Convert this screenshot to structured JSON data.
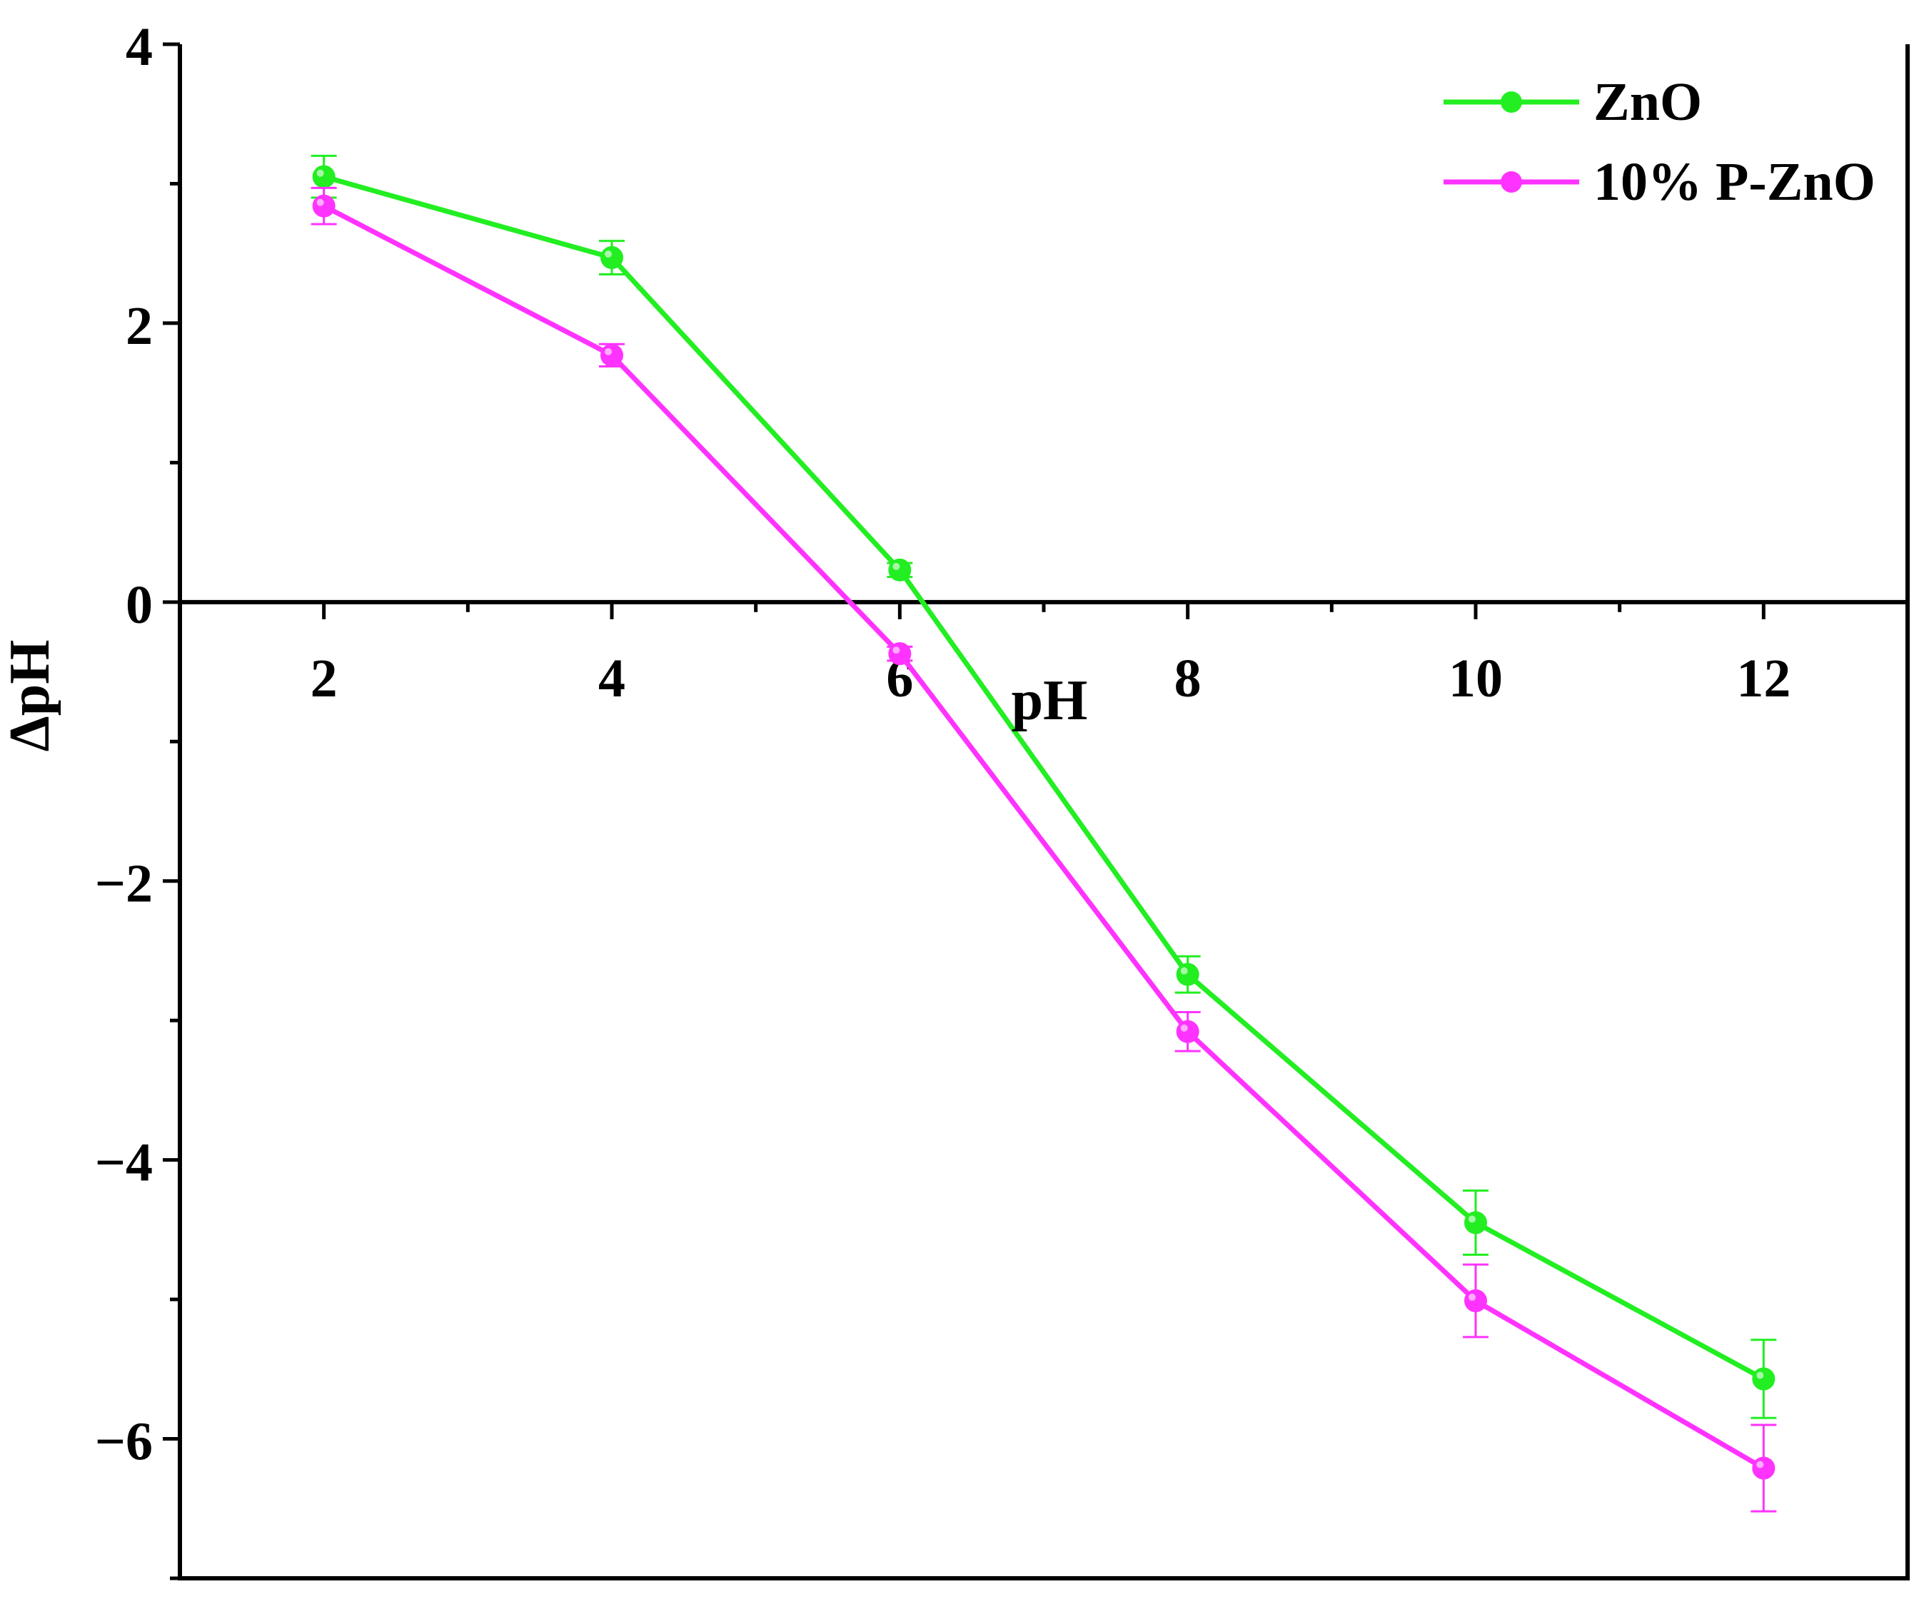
{
  "chart_data": {
    "type": "line",
    "xlabel": "pH",
    "ylabel": "ΔpH",
    "xlim": [
      1,
      13
    ],
    "ylim": [
      -7,
      4
    ],
    "x_ticks": [
      2,
      4,
      6,
      8,
      10,
      12
    ],
    "x_minor_ticks": [
      3,
      5,
      7,
      9,
      11
    ],
    "y_ticks": [
      4,
      2,
      0,
      -2,
      -4,
      -6
    ],
    "y_tick_labels": [
      "4",
      "2",
      "0",
      "−2",
      "−4",
      "−6"
    ],
    "y_minor_ticks": [
      3,
      1,
      -1,
      -3,
      -5,
      -7
    ],
    "x_axis_crosses_at_y": 0,
    "grid": false,
    "legend_position": "top-right",
    "series": [
      {
        "name": "ZnO",
        "color": "#22ee22",
        "x": [
          2,
          4,
          6,
          8,
          10,
          12
        ],
        "y": [
          3.05,
          2.47,
          0.23,
          -2.67,
          -4.45,
          -5.57
        ],
        "error": [
          0.15,
          0.12,
          0.05,
          0.13,
          0.23,
          0.28
        ]
      },
      {
        "name": "10% P-ZnO",
        "color": "#ff33ff",
        "x": [
          2,
          4,
          6,
          8,
          10,
          12
        ],
        "y": [
          2.84,
          1.77,
          -0.37,
          -3.08,
          -5.01,
          -6.21
        ],
        "error": [
          0.13,
          0.08,
          0.05,
          0.14,
          0.26,
          0.31
        ]
      }
    ]
  }
}
